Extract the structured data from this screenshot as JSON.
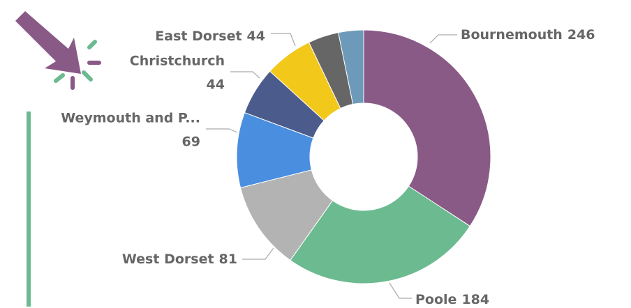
{
  "chart_data": {
    "type": "donut",
    "categories": [
      "Bournemouth",
      "Poole",
      "West Dorset",
      "Weymouth and P...",
      "Christchurch",
      "East Dorset",
      null,
      null
    ],
    "values": [
      246,
      184,
      81,
      69,
      44,
      44,
      28,
      23
    ],
    "colors": [
      "#8a5a87",
      "#6cba90",
      "#b3b3b3",
      "#4a8fdf",
      "#4b5b8b",
      "#f2c81b",
      "#666666",
      "#6e9ab9"
    ]
  }
}
